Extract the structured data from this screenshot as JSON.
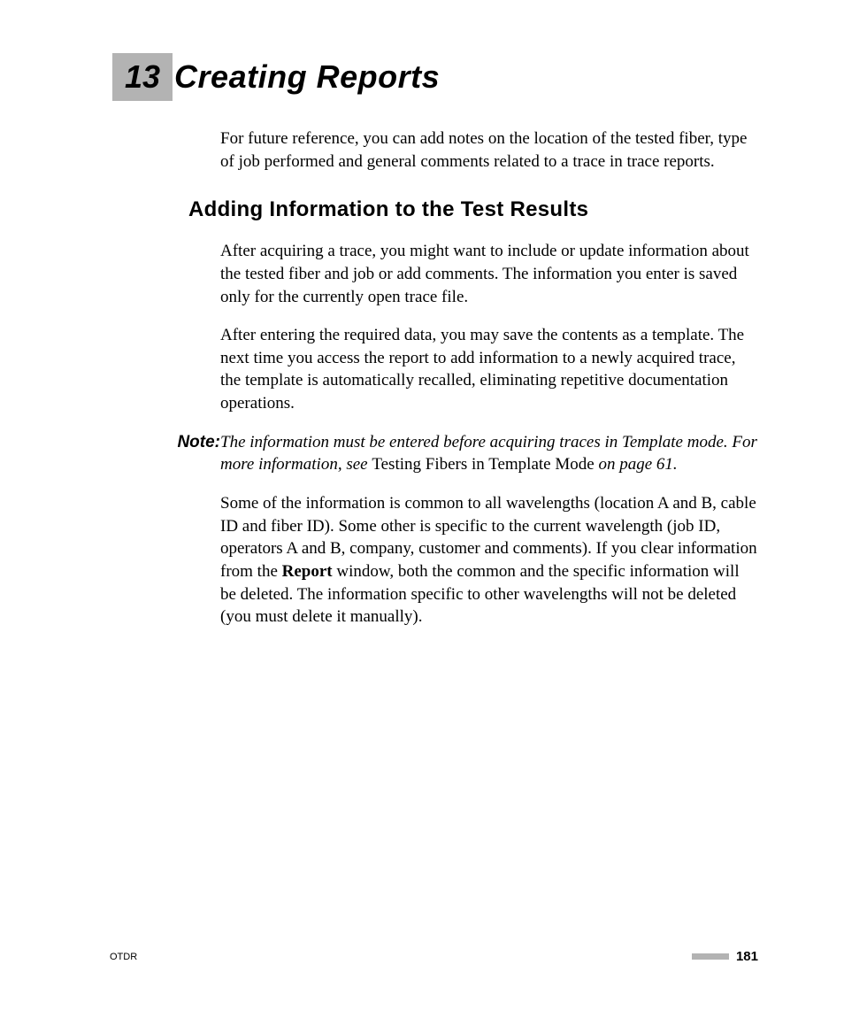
{
  "chapter": {
    "number": "13",
    "title": "Creating Reports"
  },
  "intro": "For future reference, you can add notes on the location of the tested fiber, type of job performed and general comments related to a trace in trace reports.",
  "section": {
    "heading": "Adding Information to the Test Results",
    "para1": "After acquiring a trace, you might want to include or update information about the tested fiber and job or add comments. The information you enter is saved only for the currently open trace file.",
    "para2": "After entering the required data, you may save the contents as a template. The next time you access the report to add information to a newly acquired trace, the template is automatically recalled, eliminating repetitive documentation operations."
  },
  "note": {
    "label": "Note:",
    "text_italic_1": "The information must be entered before acquiring traces in Template mode. For more information, see ",
    "text_normal": "Testing Fibers in Template Mode",
    "text_italic_2": " on page 61."
  },
  "para3": {
    "pre": "Some of the information is common to all wavelengths (location A and B, cable ID and fiber ID). Some other is specific to the current wavelength (job ID, operators A and B, company, customer and comments). If you clear information from the ",
    "bold": "Report",
    "post": " window, both the common and the specific information will be deleted. The information specific to other wavelengths will not be deleted (you must delete it manually)."
  },
  "footer": {
    "left": "OTDR",
    "page": "181"
  },
  "colors": {
    "chapter_box_bg": "#b3b3b3",
    "footer_bar": "#b3b3b3",
    "background": "#ffffff",
    "text": "#000000"
  },
  "typography": {
    "chapter_title_fontsize": 36,
    "section_heading_fontsize": 24,
    "body_fontsize": 19,
    "footer_left_fontsize": 11,
    "page_number_fontsize": 15
  }
}
